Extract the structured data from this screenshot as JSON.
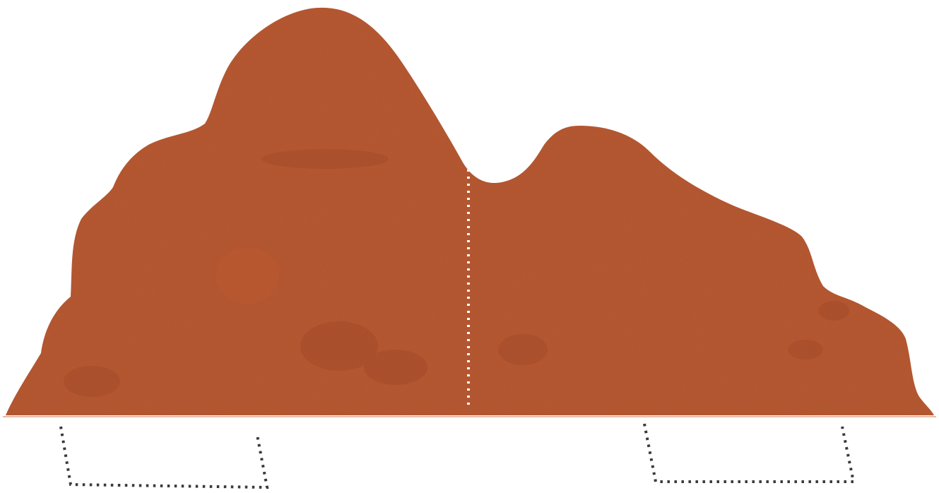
{
  "illustration": {
    "shape": "rock-formation",
    "colors": {
      "rock": "#b3512c",
      "rock_dark": "#9e4424",
      "rock_light": "#c05a32",
      "ground_line": "#e6b8a3",
      "split_line": "#ffffff",
      "bracket_dots": "#3a3a3a",
      "background": "#ffffff"
    }
  }
}
